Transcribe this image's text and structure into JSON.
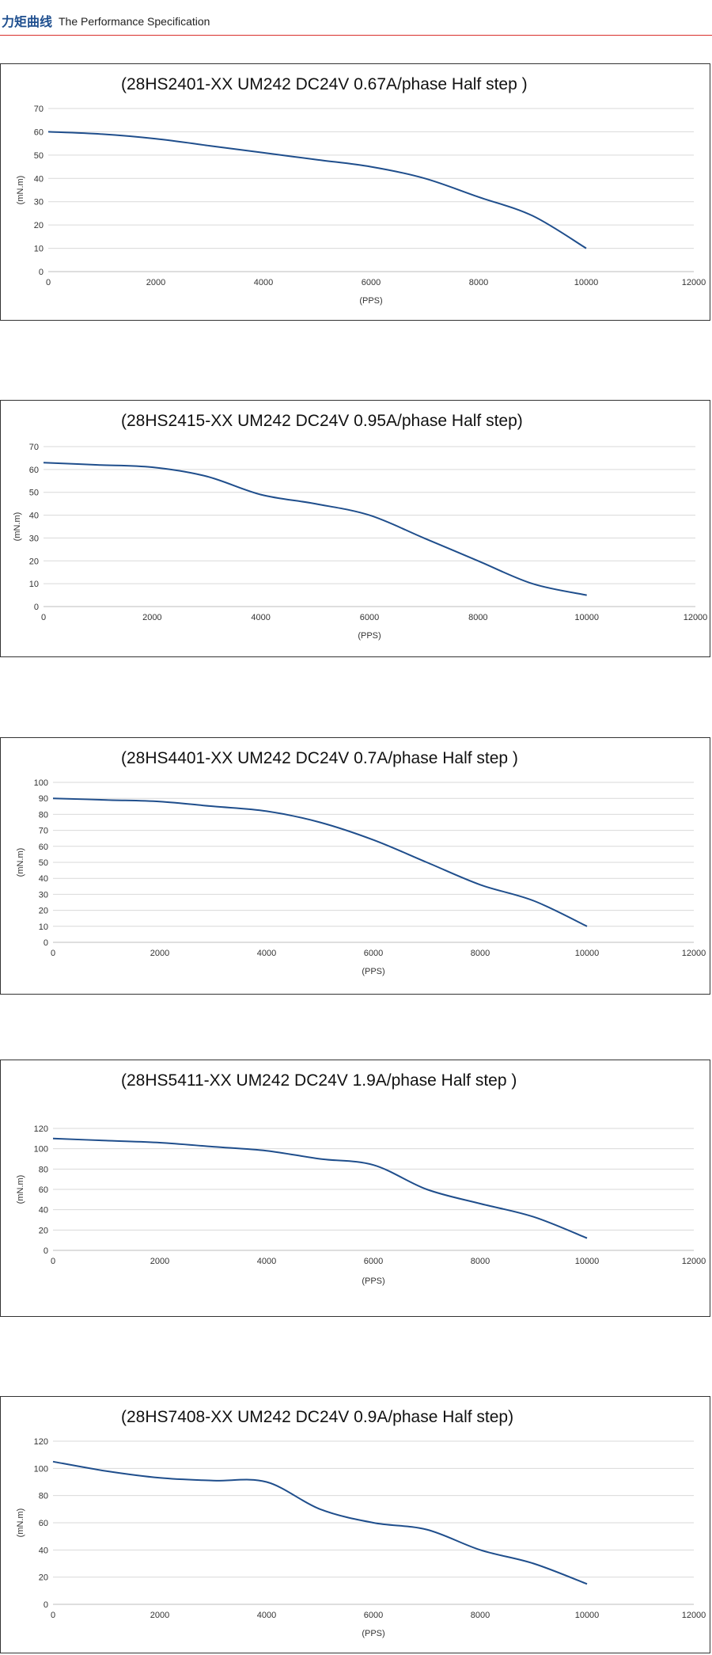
{
  "header": {
    "title_cn": "力矩曲线",
    "title_en": "The Performance Specification"
  },
  "colors": {
    "accent_line": "#d9302c",
    "series": "#1f4e8c",
    "grid": "#d9d9d9"
  },
  "chart_data": [
    {
      "type": "line",
      "title": "(28HS2401-XX   UM242   DC24V  0.67A/phase Half step )",
      "xlabel": "(PPS)",
      "ylabel": "(mN.m)",
      "xlim": [
        0,
        12000
      ],
      "ylim": [
        0,
        70
      ],
      "xticks": [
        0,
        2000,
        4000,
        6000,
        8000,
        10000,
        12000
      ],
      "yticks": [
        0,
        10,
        20,
        30,
        40,
        50,
        60,
        70
      ],
      "grid": true,
      "series": [
        {
          "x": [
            0,
            1000,
            2000,
            3000,
            4000,
            5000,
            6000,
            7000,
            8000,
            9000,
            10000
          ],
          "y": [
            60,
            59,
            57,
            54,
            51,
            48,
            45,
            40,
            32,
            24,
            10
          ]
        }
      ]
    },
    {
      "type": "line",
      "title": "(28HS2415-XX     UM242  DC24V  0.95A/phase Half step)",
      "xlabel": "(PPS)",
      "ylabel": "(mN.m)",
      "xlim": [
        0,
        12000
      ],
      "ylim": [
        0,
        70
      ],
      "xticks": [
        0,
        2000,
        4000,
        6000,
        8000,
        10000,
        12000
      ],
      "yticks": [
        0,
        10,
        20,
        30,
        40,
        50,
        60,
        70
      ],
      "grid": true,
      "series": [
        {
          "x": [
            0,
            1000,
            2000,
            3000,
            4000,
            5000,
            6000,
            7000,
            8000,
            9000,
            10000
          ],
          "y": [
            63,
            62,
            61,
            57,
            49,
            45,
            40,
            30,
            20,
            10,
            5
          ]
        }
      ]
    },
    {
      "type": "line",
      "title": "(28HS4401-XX   UM242   DC24V  0.7A/phase Half step )",
      "xlabel": "(PPS)",
      "ylabel": "(mN.m)",
      "xlim": [
        0,
        12000
      ],
      "ylim": [
        0,
        100
      ],
      "xticks": [
        0,
        2000,
        4000,
        6000,
        8000,
        10000,
        12000
      ],
      "yticks": [
        0,
        10,
        20,
        30,
        40,
        50,
        60,
        70,
        80,
        90,
        100
      ],
      "grid": true,
      "series": [
        {
          "x": [
            0,
            1000,
            2000,
            3000,
            4000,
            5000,
            6000,
            7000,
            8000,
            9000,
            10000
          ],
          "y": [
            90,
            89,
            88,
            85,
            82,
            75,
            64,
            50,
            36,
            26,
            10
          ]
        }
      ]
    },
    {
      "type": "line",
      "title": "(28HS5411-XX    UM242   DC24V  1.9A/phase Half step )",
      "xlabel": "(PPS)",
      "ylabel": "(mN.m)",
      "xlim": [
        0,
        12000
      ],
      "ylim": [
        0,
        120
      ],
      "xticks": [
        0,
        2000,
        4000,
        6000,
        8000,
        10000,
        12000
      ],
      "yticks": [
        0,
        20,
        40,
        60,
        80,
        100,
        120
      ],
      "grid": true,
      "series": [
        {
          "x": [
            0,
            1000,
            2000,
            3000,
            4000,
            5000,
            6000,
            7000,
            8000,
            9000,
            10000
          ],
          "y": [
            110,
            108,
            106,
            102,
            98,
            90,
            84,
            60,
            46,
            33,
            12
          ]
        }
      ]
    },
    {
      "type": "line",
      "title": "(28HS7408-XX      UM242  DC24V  0.9A/phase Half step)",
      "xlabel": "(PPS)",
      "ylabel": "(mN.m)",
      "xlim": [
        0,
        12000
      ],
      "ylim": [
        0,
        120
      ],
      "xticks": [
        0,
        2000,
        4000,
        6000,
        8000,
        10000,
        12000
      ],
      "yticks": [
        0,
        20,
        40,
        60,
        80,
        100,
        120
      ],
      "grid": true,
      "series": [
        {
          "x": [
            0,
            1000,
            2000,
            3000,
            4000,
            5000,
            6000,
            7000,
            8000,
            9000,
            10000
          ],
          "y": [
            105,
            98,
            93,
            91,
            90,
            70,
            60,
            55,
            40,
            30,
            15
          ]
        }
      ]
    }
  ]
}
